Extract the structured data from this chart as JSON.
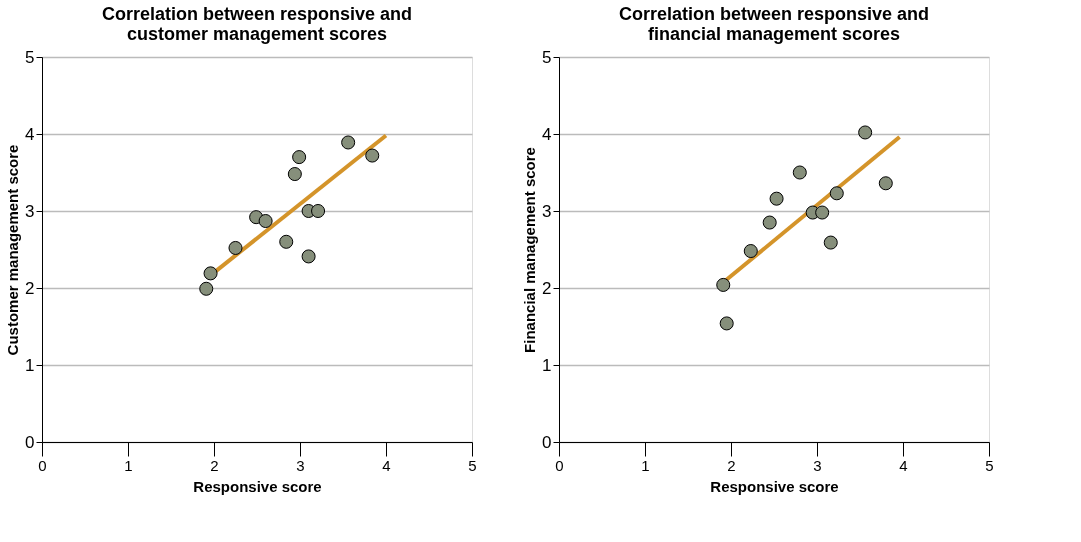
{
  "chart_data": [
    {
      "type": "scatter",
      "title": "Correlation between responsive and customer management scores",
      "xlabel": "Responsive score",
      "ylabel": "Customer management score",
      "xlim": [
        0,
        5
      ],
      "xticks": [
        0,
        1,
        2,
        3,
        4,
        5
      ],
      "ylim": [
        0,
        5
      ],
      "yticks": [
        0,
        1,
        2,
        3,
        4,
        5
      ],
      "grid": "y",
      "series": [
        {
          "type": "scatter",
          "marker": "circle",
          "color": "#868f7b",
          "x": [
            1.91,
            1.96,
            2.25,
            2.49,
            2.6,
            2.84,
            2.94,
            2.99,
            3.1,
            3.21,
            3.1,
            3.56,
            3.84
          ],
          "values": [
            1.99,
            2.19,
            2.52,
            2.92,
            2.87,
            2.6,
            3.48,
            3.7,
            3.0,
            3.0,
            2.41,
            3.89,
            3.72
          ]
        },
        {
          "type": "line",
          "color": "#d4942a",
          "x": [
            2.0,
            4.0
          ],
          "values": [
            2.2,
            3.98
          ]
        }
      ]
    },
    {
      "type": "scatter",
      "title": "Correlation between responsive and financial management scores",
      "xlabel": "Responsive score",
      "ylabel": "Financial management score",
      "xlim": [
        0,
        5
      ],
      "xticks": [
        0,
        1,
        2,
        3,
        4,
        5
      ],
      "ylim": [
        0,
        5
      ],
      "yticks": [
        0,
        1,
        2,
        3,
        4,
        5
      ],
      "grid": "y",
      "series": [
        {
          "type": "scatter",
          "marker": "circle",
          "color": "#868f7b",
          "x": [
            1.91,
            1.95,
            2.23,
            2.45,
            2.53,
            2.8,
            2.95,
            3.06,
            3.23,
            3.16,
            3.56,
            3.8
          ],
          "values": [
            2.04,
            1.54,
            2.48,
            2.85,
            3.16,
            3.5,
            2.98,
            2.98,
            3.23,
            2.59,
            4.02,
            3.36
          ]
        },
        {
          "type": "line",
          "color": "#d4942a",
          "x": [
            1.94,
            3.96
          ],
          "values": [
            2.1,
            3.96
          ]
        }
      ]
    }
  ]
}
